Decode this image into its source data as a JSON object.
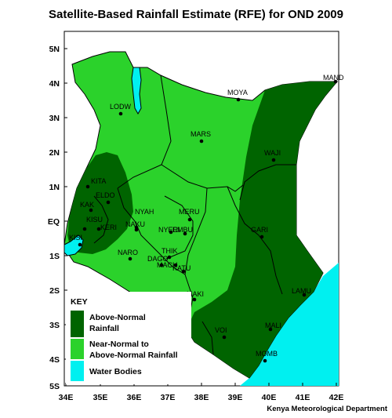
{
  "title": "Satellite-Based Rainfall Estimate (RFE) for OND 2009",
  "credit": "Kenya Meteorological Department",
  "colors": {
    "above_normal": "#006400",
    "near_normal": "#00cc00",
    "near_normal_bright": "#2bd22b",
    "water": "#00f0f0",
    "boundary": "#000000"
  },
  "axes": {
    "x_ticks": [
      "34E",
      "35E",
      "36E",
      "37E",
      "38E",
      "39E",
      "40E",
      "41E",
      "42E"
    ],
    "y_ticks": [
      "5N",
      "4N",
      "3N",
      "2N",
      "1N",
      "EQ",
      "1S",
      "2S",
      "3S",
      "4S",
      "5S"
    ]
  },
  "places": [
    {
      "name": "MAND"
    },
    {
      "name": "MOYA"
    },
    {
      "name": "LODW"
    },
    {
      "name": "MARS"
    },
    {
      "name": "WAJI"
    },
    {
      "name": "KITA"
    },
    {
      "name": "ELDO"
    },
    {
      "name": "KAK"
    },
    {
      "name": "KISU"
    },
    {
      "name": "KERI"
    },
    {
      "name": "KISI"
    },
    {
      "name": "NYAH"
    },
    {
      "name": "NAKU"
    },
    {
      "name": "MERU"
    },
    {
      "name": "NYERI"
    },
    {
      "name": "EMBU"
    },
    {
      "name": "GARI"
    },
    {
      "name": "NARO"
    },
    {
      "name": "THIK"
    },
    {
      "name": "DAGO"
    },
    {
      "name": "MACH"
    },
    {
      "name": "KATU"
    },
    {
      "name": "MAKI"
    },
    {
      "name": "LAMU"
    },
    {
      "name": "VOI"
    },
    {
      "name": "MALI"
    },
    {
      "name": "MOMB"
    }
  ],
  "legend": {
    "title": "KEY",
    "items": [
      {
        "label_line1": "Above-Normal",
        "label_line2": "Rainfall"
      },
      {
        "label_line1": "Near-Normal to",
        "label_line2": "Above-Normal Rainfall"
      },
      {
        "label_line1": "Water Bodies",
        "label_line2": ""
      }
    ]
  }
}
